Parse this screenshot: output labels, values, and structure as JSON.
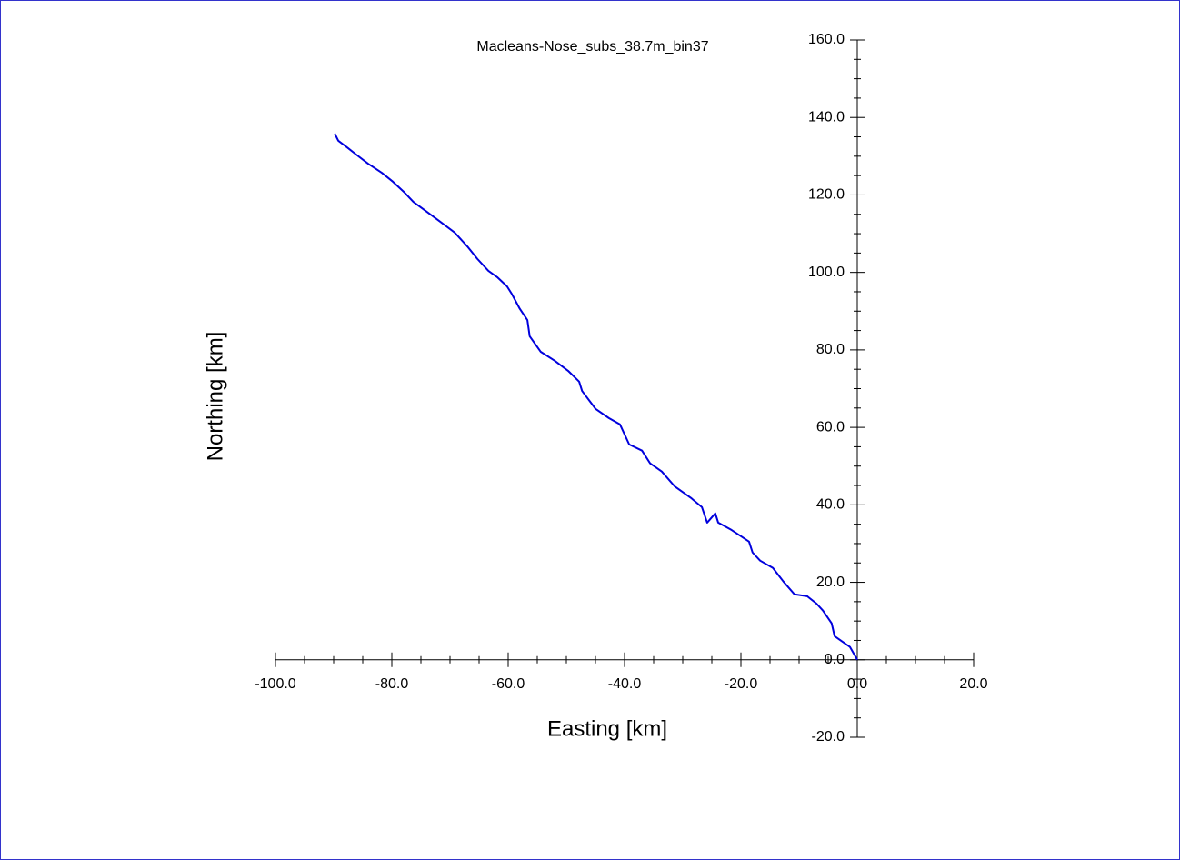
{
  "chart_data": {
    "type": "line",
    "title": "Macleans-Nose_subs_38.7m_bin37",
    "x_label": "Easting [km]",
    "y_label": "Northing [km]",
    "xlim": [
      -100,
      20
    ],
    "ylim": [
      -20,
      160
    ],
    "xticks": [
      {
        "value": -100,
        "label": "-100.0"
      },
      {
        "value": -80,
        "label": "-80.0"
      },
      {
        "value": -60,
        "label": "-60.0"
      },
      {
        "value": -40,
        "label": "-40.0"
      },
      {
        "value": -20,
        "label": "-20.0"
      },
      {
        "value": 0,
        "label": "0.0"
      },
      {
        "value": 20,
        "label": "20.0"
      }
    ],
    "yticks": [
      {
        "value": -20,
        "label": "-20.0"
      },
      {
        "value": 0,
        "label": "0.0"
      },
      {
        "value": 20,
        "label": "20.0"
      },
      {
        "value": 40,
        "label": "40.0"
      },
      {
        "value": 60,
        "label": "60.0"
      },
      {
        "value": 80,
        "label": "80.0"
      },
      {
        "value": 100,
        "label": "100.0"
      },
      {
        "value": 120,
        "label": "120.0"
      },
      {
        "value": 140,
        "label": "140.0"
      },
      {
        "value": 160,
        "label": "160.0"
      }
    ],
    "series": [
      {
        "color": "#0000dd",
        "x": [
          0,
          -1.25,
          -3.9,
          -4.4,
          -5.9,
          -7.0,
          -8.6,
          -10.8,
          -12.7,
          -14.5,
          -16.7,
          -18.0,
          -18.6,
          -20.0,
          -21.6,
          -23.9,
          -24.4,
          -25.8,
          -26.7,
          -28.6,
          -31.4,
          -33.6,
          -35.6,
          -37.0,
          -39.2,
          -40.8,
          -42.7,
          -45.0,
          -47.3,
          -47.8,
          -49.7,
          -52.0,
          -54.4,
          -56.3,
          -56.7,
          -58.0,
          -59.4,
          -60.2,
          -61.9,
          -63.4,
          -65.3,
          -66.9,
          -69.2,
          -71.7,
          -74.2,
          -76.3,
          -77.8,
          -79.8,
          -81.7,
          -84.1,
          -86.1,
          -87.7,
          -89.2,
          -89.8
        ],
        "values": [
          0,
          3.3,
          6.1,
          9.4,
          12.7,
          14.5,
          16.4,
          16.9,
          20.2,
          23.7,
          25.6,
          27.7,
          30.5,
          31.9,
          33.5,
          35.4,
          37.8,
          35.4,
          39.4,
          41.8,
          44.8,
          48.6,
          50.7,
          54.0,
          55.6,
          60.8,
          62.4,
          64.8,
          69.4,
          71.8,
          74.6,
          77.2,
          79.5,
          83.5,
          87.7,
          90.6,
          94.5,
          96.4,
          98.8,
          100.4,
          103.5,
          106.5,
          110.3,
          113.1,
          115.9,
          118.2,
          120.6,
          123.4,
          125.7,
          128.1,
          130.4,
          132.3,
          134.0,
          135.8
        ]
      }
    ]
  }
}
